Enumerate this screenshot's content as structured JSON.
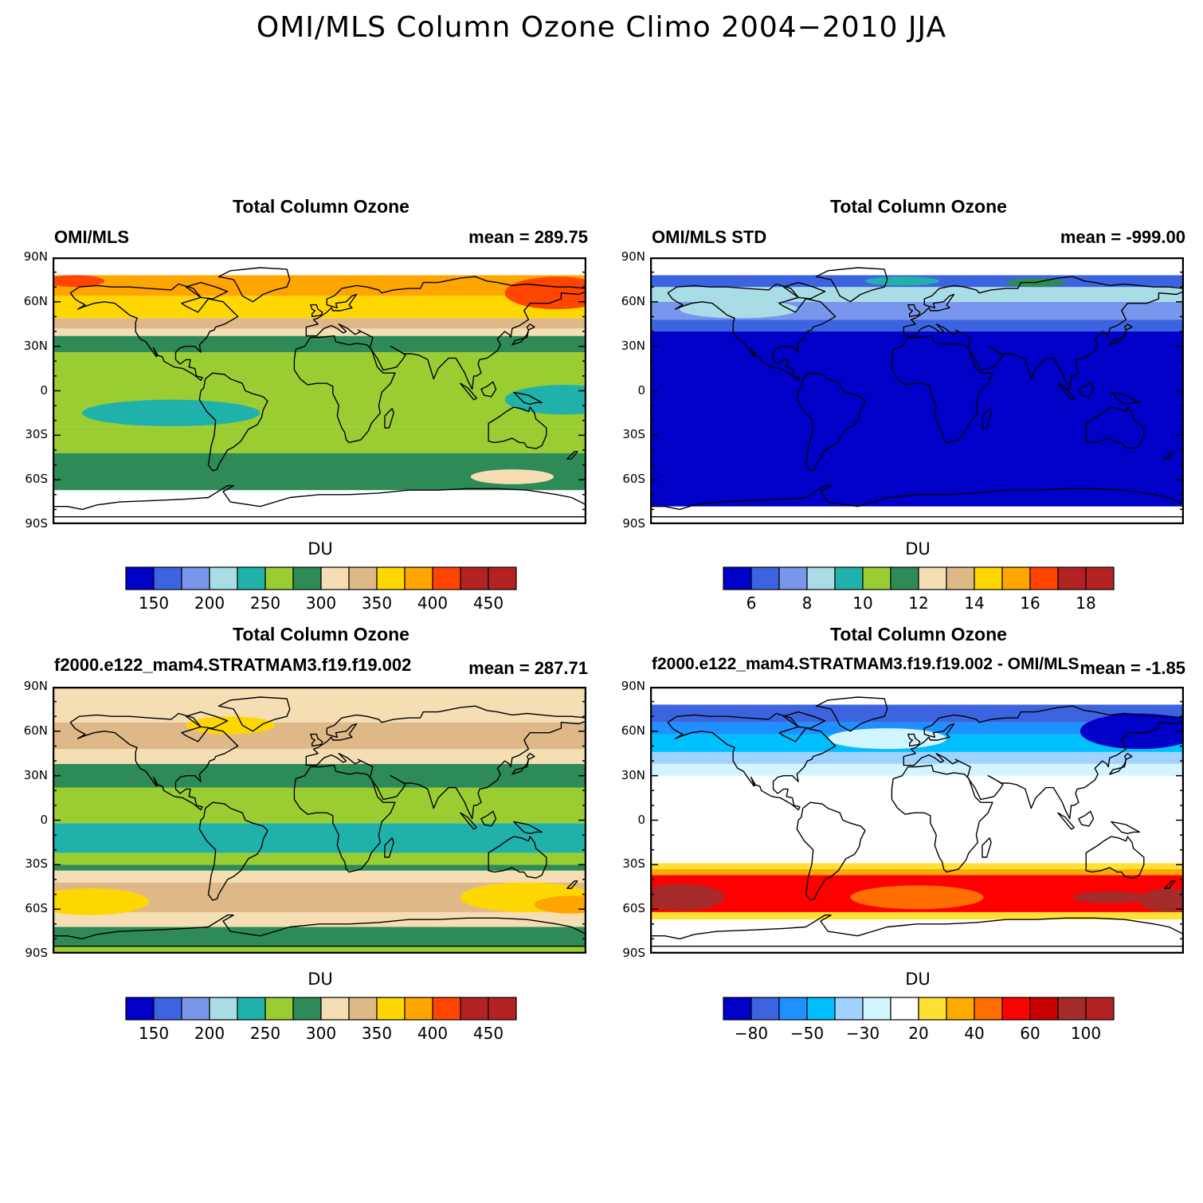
{
  "title": "OMI/MLS Column Ozone Climo 2004−2010 JJA",
  "lat_labels": [
    "90N",
    "60N",
    "30N",
    "0",
    "30S",
    "60S",
    "90S"
  ],
  "panels": [
    {
      "title": "Total Column Ozone",
      "left_label": "OMI/MLS",
      "mean_label": "mean = 289.75",
      "units": "DU",
      "colorbar": {
        "colors": [
          "#0000c8",
          "#3c64e0",
          "#7896ec",
          "#aadce6",
          "#20b2aa",
          "#9acd32",
          "#2e8b57",
          "#f5deb3",
          "#deb887",
          "#ffd700",
          "#ffa500",
          "#ff4500",
          "#b22222",
          "#b22222"
        ],
        "labels": [
          {
            "text": "150",
            "after": 1
          },
          {
            "text": "200",
            "after": 3
          },
          {
            "text": "250",
            "after": 5
          },
          {
            "text": "300",
            "after": 7
          },
          {
            "text": "350",
            "after": 9
          },
          {
            "text": "400",
            "after": 11
          },
          {
            "text": "450",
            "after": 13
          }
        ]
      },
      "bands": [
        {
          "lat": [
            -90,
            -67
          ],
          "color": "#ffffff"
        },
        {
          "lat": [
            -67,
            -42
          ],
          "color": "#2e8b57"
        },
        {
          "lat": [
            -42,
            -24
          ],
          "color": "#9acd32"
        },
        {
          "lat": [
            -24,
            -10
          ],
          "color": "#9acd32"
        },
        {
          "lat": [
            -10,
            26
          ],
          "color": "#9acd32"
        },
        {
          "lat": [
            26,
            37
          ],
          "color": "#2e8b57"
        },
        {
          "lat": [
            37,
            42
          ],
          "color": "#f5deb3"
        },
        {
          "lat": [
            42,
            49
          ],
          "color": "#deb887"
        },
        {
          "lat": [
            49,
            64
          ],
          "color": "#ffd700"
        },
        {
          "lat": [
            64,
            78
          ],
          "color": "#ffa500"
        },
        {
          "lat": [
            78,
            90
          ],
          "color": "#ffffff"
        }
      ],
      "blobs": [
        {
          "lon": -100,
          "lat": -15,
          "rlon": 60,
          "rlat": 9,
          "color": "#20b2aa"
        },
        {
          "lon": 165,
          "lat": -6,
          "rlon": 40,
          "rlat": 10,
          "color": "#20b2aa"
        },
        {
          "lon": 130,
          "lat": -58,
          "rlon": 28,
          "rlat": 5,
          "color": "#f5deb3"
        },
        {
          "lon": 160,
          "lat": 66,
          "rlon": 35,
          "rlat": 11,
          "color": "#ff4500"
        },
        {
          "lon": -165,
          "lat": 74,
          "rlon": 20,
          "rlat": 4,
          "color": "#ff4500"
        }
      ]
    },
    {
      "title": "Total Column Ozone",
      "left_label": "OMI/MLS STD",
      "mean_label": "mean = -999.00",
      "units": "DU",
      "colorbar": {
        "colors": [
          "#0000c8",
          "#3c64e0",
          "#7896ec",
          "#aadce6",
          "#20b2aa",
          "#9acd32",
          "#2e8b57",
          "#f5deb3",
          "#deb887",
          "#ffd700",
          "#ffa500",
          "#ff4500",
          "#b22222",
          "#b22222"
        ],
        "labels": [
          {
            "text": "6",
            "after": 1
          },
          {
            "text": "8",
            "after": 3
          },
          {
            "text": "10",
            "after": 5
          },
          {
            "text": "12",
            "after": 7
          },
          {
            "text": "14",
            "after": 9
          },
          {
            "text": "16",
            "after": 11
          },
          {
            "text": "18",
            "after": 13
          }
        ]
      },
      "bands": [
        {
          "lat": [
            -90,
            -78
          ],
          "color": "#ffffff"
        },
        {
          "lat": [
            -78,
            40
          ],
          "color": "#0000c8"
        },
        {
          "lat": [
            40,
            48
          ],
          "color": "#3c64e0"
        },
        {
          "lat": [
            48,
            60
          ],
          "color": "#7896ec"
        },
        {
          "lat": [
            60,
            70
          ],
          "color": "#aadce6"
        },
        {
          "lat": [
            70,
            78
          ],
          "color": "#3c64e0"
        },
        {
          "lat": [
            78,
            90
          ],
          "color": "#ffffff"
        }
      ],
      "blobs": [
        {
          "lon": -10,
          "lat": 74,
          "rlon": 25,
          "rlat": 3,
          "color": "#20b2aa"
        },
        {
          "lon": 80,
          "lat": 73,
          "rlon": 20,
          "rlat": 3,
          "color": "#2e8b57"
        },
        {
          "lon": -120,
          "lat": 55,
          "rlon": 40,
          "rlat": 6,
          "color": "#aadce6"
        }
      ]
    },
    {
      "title": "Total Column Ozone",
      "left_label": "f2000.e122_mam4.STRATMAM3.f19.f19.002",
      "mean_label": "mean = 287.71",
      "units": "DU",
      "colorbar": {
        "colors": [
          "#0000c8",
          "#3c64e0",
          "#7896ec",
          "#aadce6",
          "#20b2aa",
          "#9acd32",
          "#2e8b57",
          "#f5deb3",
          "#deb887",
          "#ffd700",
          "#ffa500",
          "#ff4500",
          "#b22222",
          "#b22222"
        ],
        "labels": [
          {
            "text": "150",
            "after": 1
          },
          {
            "text": "200",
            "after": 3
          },
          {
            "text": "250",
            "after": 5
          },
          {
            "text": "300",
            "after": 7
          },
          {
            "text": "350",
            "after": 9
          },
          {
            "text": "400",
            "after": 11
          },
          {
            "text": "450",
            "after": 13
          }
        ]
      },
      "bands": [
        {
          "lat": [
            -90,
            -85
          ],
          "color": "#9acd32"
        },
        {
          "lat": [
            -85,
            -72
          ],
          "color": "#2e8b57"
        },
        {
          "lat": [
            -72,
            -62
          ],
          "color": "#f5deb3"
        },
        {
          "lat": [
            -62,
            -42
          ],
          "color": "#deb887"
        },
        {
          "lat": [
            -42,
            -34
          ],
          "color": "#f5deb3"
        },
        {
          "lat": [
            -34,
            -30
          ],
          "color": "#2e8b57"
        },
        {
          "lat": [
            -30,
            -22
          ],
          "color": "#9acd32"
        },
        {
          "lat": [
            -22,
            -2
          ],
          "color": "#20b2aa"
        },
        {
          "lat": [
            -2,
            22
          ],
          "color": "#9acd32"
        },
        {
          "lat": [
            22,
            38
          ],
          "color": "#2e8b57"
        },
        {
          "lat": [
            38,
            48
          ],
          "color": "#f5deb3"
        },
        {
          "lat": [
            48,
            66
          ],
          "color": "#deb887"
        },
        {
          "lat": [
            66,
            90
          ],
          "color": "#f5deb3"
        }
      ],
      "blobs": [
        {
          "lon": -155,
          "lat": -55,
          "rlon": 40,
          "rlat": 9,
          "color": "#ffd700"
        },
        {
          "lon": 140,
          "lat": -52,
          "rlon": 45,
          "rlat": 10,
          "color": "#ffd700"
        },
        {
          "lon": 170,
          "lat": -57,
          "rlon": 25,
          "rlat": 6,
          "color": "#ffa500"
        },
        {
          "lon": -60,
          "lat": 64,
          "rlon": 30,
          "rlat": 6,
          "color": "#ffd700"
        }
      ]
    },
    {
      "title": "Total Column Ozone",
      "left_label": "f2000.e122_mam4.STRATMAM3.f19.f19.002 - OMI/MLS",
      "mean_label": "mean = -1.85",
      "units": "DU",
      "colorbar": {
        "colors": [
          "#0000c8",
          "#3c64e0",
          "#1e90ff",
          "#00bfff",
          "#a0d2ff",
          "#d2f5ff",
          "#ffffff",
          "#ffe135",
          "#ffaa00",
          "#ff6e00",
          "#ff0000",
          "#c80000",
          "#a52a2a",
          "#b22222"
        ],
        "labels": [
          {
            "text": "−80",
            "after": 1
          },
          {
            "text": "−50",
            "after": 3
          },
          {
            "text": "−30",
            "after": 5
          },
          {
            "text": "20",
            "after": 7
          },
          {
            "text": "40",
            "after": 9
          },
          {
            "text": "60",
            "after": 11
          },
          {
            "text": "100",
            "after": 13
          }
        ]
      },
      "bands": [
        {
          "lat": [
            -90,
            -67
          ],
          "color": "#ffffff"
        },
        {
          "lat": [
            -67,
            -62
          ],
          "color": "#ffe135"
        },
        {
          "lat": [
            -62,
            -37
          ],
          "color": "#ff0000"
        },
        {
          "lat": [
            -37,
            -33
          ],
          "color": "#ffaa00"
        },
        {
          "lat": [
            -33,
            -29
          ],
          "color": "#ffe135"
        },
        {
          "lat": [
            -29,
            30
          ],
          "color": "#ffffff"
        },
        {
          "lat": [
            30,
            38
          ],
          "color": "#d2f5ff"
        },
        {
          "lat": [
            38,
            46
          ],
          "color": "#a0d2ff"
        },
        {
          "lat": [
            46,
            58
          ],
          "color": "#00bfff"
        },
        {
          "lat": [
            58,
            66
          ],
          "color": "#1e90ff"
        },
        {
          "lat": [
            66,
            78
          ],
          "color": "#3c64e0"
        },
        {
          "lat": [
            78,
            90
          ],
          "color": "#ffffff"
        }
      ],
      "blobs": [
        {
          "lon": -160,
          "lat": -52,
          "rlon": 30,
          "rlat": 9,
          "color": "#a52a2a"
        },
        {
          "lon": 130,
          "lat": -52,
          "rlon": 25,
          "rlat": 4,
          "color": "#a52a2a"
        },
        {
          "lon": 170,
          "lat": -54,
          "rlon": 20,
          "rlat": 8,
          "color": "#a52a2a"
        },
        {
          "lon": 0,
          "lat": -52,
          "rlon": 45,
          "rlat": 8,
          "color": "#ff6e00"
        },
        {
          "lon": 150,
          "lat": 60,
          "rlon": 40,
          "rlat": 12,
          "color": "#0000c8"
        },
        {
          "lon": -20,
          "lat": 55,
          "rlon": 40,
          "rlat": 7,
          "color": "#d2f5ff"
        }
      ]
    }
  ]
}
